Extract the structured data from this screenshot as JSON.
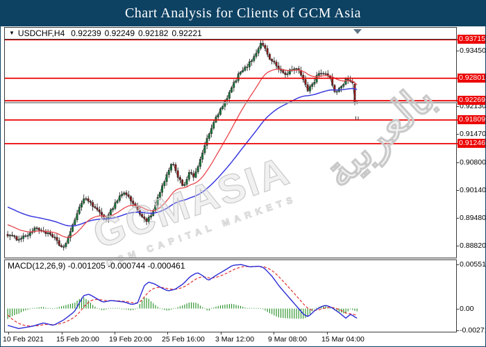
{
  "title": "Chart Analysis for Clients of GCM Asia",
  "quote_bar": {
    "symbol": "USDCHF,H4",
    "open": "0.92239",
    "high": "0.92249",
    "low": "0.92182",
    "close": "0.92221"
  },
  "indicator_label": "MACD(12,26,9) -0.001205 -0.000744 -0.000461",
  "watermarks": {
    "primary": "GCMASIA",
    "secondary": "GCM CAPITAL MARKETS",
    "side": "بالعربية"
  },
  "colors": {
    "titlebar": "#0d4263",
    "level_line": "#ec0000",
    "badge_bg": "#ec0000",
    "badge_text": "#ffffff",
    "current_price_line": "#a3a3a3",
    "candle_up": "#12823a",
    "candle_down": "#9a1616",
    "ma_fast": "#e8444a",
    "ma_slow": "#3a3ae0",
    "macd_line": "#2929d6",
    "macd_signal": "#e03030",
    "macd_hist": "#1e8c1e",
    "watermark": "#c9c9c9"
  },
  "price_axis": {
    "ticks": [
      [
        "0.93450",
        0.9345
      ],
      [
        "0.92130",
        0.9213
      ],
      [
        "0.91470",
        0.9147
      ],
      [
        "0.90800",
        0.908
      ],
      [
        "0.90140",
        0.9014
      ],
      [
        "0.89480",
        0.8948
      ],
      [
        "0.88820",
        0.8882
      ]
    ],
    "badges": [
      [
        "0.93715",
        0.93715
      ],
      [
        "0.92801",
        0.92801
      ],
      [
        "0.92269",
        0.92269
      ],
      [
        "0.91809",
        0.91809
      ],
      [
        "0.91246",
        0.91246
      ]
    ]
  },
  "macd_axis": [
    [
      "0.005518",
      0.005518
    ],
    [
      "0.00",
      0
    ],
    [
      "-0.002718",
      -0.002718
    ]
  ],
  "time_axis": [
    "10 Feb 2021",
    "15 Feb 20:00",
    "19 Feb 20:00",
    "25 Feb 16:00",
    "3 Mar 12:00",
    "9 Mar 08:00",
    "15 Mar 04:00"
  ],
  "chart_data": {
    "type": "candlestick",
    "symbol": "USDCHF",
    "timeframe": "H4",
    "current_bar": {
      "open": 0.92239,
      "high": 0.92249,
      "low": 0.92182,
      "close": 0.92221
    },
    "horizontal_levels": [
      0.93715,
      0.92801,
      0.92269,
      0.91809,
      0.91246
    ],
    "current_price_level": 0.92221,
    "y_axis_ticks": [
      0.9345,
      0.9213,
      0.9147,
      0.908,
      0.9014,
      0.8948,
      0.8882
    ],
    "x_labels": [
      "10 Feb 2021",
      "15 Feb 20:00",
      "19 Feb 20:00",
      "25 Feb 16:00",
      "3 Mar 12:00",
      "9 Mar 08:00",
      "15 Mar 04:00"
    ],
    "overlay_indicators": [
      "fast red moving average",
      "slow blue moving average"
    ],
    "close_path_anchors": [
      [
        9,
        0.8908
      ],
      [
        22,
        0.8898
      ],
      [
        36,
        0.8906
      ],
      [
        50,
        0.8924
      ],
      [
        64,
        0.8913
      ],
      [
        76,
        0.89
      ],
      [
        86,
        0.8878
      ],
      [
        92,
        0.8884
      ],
      [
        100,
        0.8916
      ],
      [
        110,
        0.8966
      ],
      [
        118,
        0.8993
      ],
      [
        128,
        0.8986
      ],
      [
        140,
        0.896
      ],
      [
        150,
        0.8946
      ],
      [
        160,
        0.8972
      ],
      [
        170,
        0.9
      ],
      [
        178,
        0.9009
      ],
      [
        188,
        0.8986
      ],
      [
        198,
        0.8962
      ],
      [
        208,
        0.894
      ],
      [
        216,
        0.8953
      ],
      [
        226,
        0.8998
      ],
      [
        236,
        0.9042
      ],
      [
        246,
        0.9078
      ],
      [
        254,
        0.9048
      ],
      [
        262,
        0.9022
      ],
      [
        270,
        0.9055
      ],
      [
        278,
        0.9044
      ],
      [
        286,
        0.9088
      ],
      [
        294,
        0.9125
      ],
      [
        302,
        0.916
      ],
      [
        310,
        0.919
      ],
      [
        318,
        0.9212
      ],
      [
        326,
        0.9236
      ],
      [
        334,
        0.9266
      ],
      [
        342,
        0.929
      ],
      [
        352,
        0.9306
      ],
      [
        360,
        0.9322
      ],
      [
        368,
        0.9346
      ],
      [
        375,
        0.9366
      ],
      [
        379,
        0.9352
      ],
      [
        385,
        0.9331
      ],
      [
        393,
        0.9315
      ],
      [
        401,
        0.93
      ],
      [
        409,
        0.9288
      ],
      [
        417,
        0.93
      ],
      [
        425,
        0.9303
      ],
      [
        433,
        0.9285
      ],
      [
        441,
        0.9252
      ],
      [
        449,
        0.9268
      ],
      [
        457,
        0.9294
      ],
      [
        465,
        0.9292
      ],
      [
        473,
        0.928
      ],
      [
        481,
        0.9246
      ],
      [
        489,
        0.926
      ],
      [
        497,
        0.928
      ],
      [
        503,
        0.9274
      ],
      [
        507,
        0.9266
      ],
      [
        512,
        0.9222
      ]
    ],
    "macd": {
      "parameters": "12,26,9",
      "last_values": {
        "macd": -0.001205,
        "signal": -0.000744,
        "histogram": -0.000461
      },
      "scale_max": 0.005518,
      "scale_min": -0.002718,
      "macd_waypoints": [
        [
          9,
          -0.0021
        ],
        [
          25,
          -0.0025
        ],
        [
          45,
          -0.0022
        ],
        [
          60,
          -0.0018
        ],
        [
          75,
          -0.0021
        ],
        [
          90,
          -0.0014
        ],
        [
          105,
          -0.0004
        ],
        [
          118,
          0.0016
        ],
        [
          126,
          0.0018
        ],
        [
          136,
          0.0013
        ],
        [
          146,
          0.0008
        ],
        [
          158,
          0.001
        ],
        [
          168,
          0.0009
        ],
        [
          178,
          0.0008
        ],
        [
          188,
          0.0005
        ],
        [
          196,
          0.0007
        ],
        [
          206,
          0.0029
        ],
        [
          212,
          0.0033
        ],
        [
          220,
          0.0031
        ],
        [
          230,
          0.0026
        ],
        [
          240,
          0.0022
        ],
        [
          250,
          0.0024
        ],
        [
          262,
          0.0031
        ],
        [
          272,
          0.004
        ],
        [
          282,
          0.0045
        ],
        [
          290,
          0.0041
        ],
        [
          298,
          0.0035
        ],
        [
          310,
          0.0042
        ],
        [
          320,
          0.0047
        ],
        [
          333,
          0.0054
        ],
        [
          345,
          0.0055
        ],
        [
          358,
          0.0052
        ],
        [
          370,
          0.0053
        ],
        [
          378,
          0.0051
        ],
        [
          390,
          0.004
        ],
        [
          400,
          0.0028
        ],
        [
          412,
          0.0016
        ],
        [
          424,
          0.0004
        ],
        [
          436,
          -0.0008
        ],
        [
          442,
          -0.001
        ],
        [
          452,
          -0.0002
        ],
        [
          462,
          0.0003
        ],
        [
          468,
          0.0004
        ],
        [
          476,
          0.0001
        ],
        [
          486,
          -0.0005
        ],
        [
          496,
          -0.0012
        ],
        [
          503,
          -0.0007
        ],
        [
          508,
          -0.001
        ],
        [
          512,
          -0.0012
        ]
      ]
    }
  }
}
